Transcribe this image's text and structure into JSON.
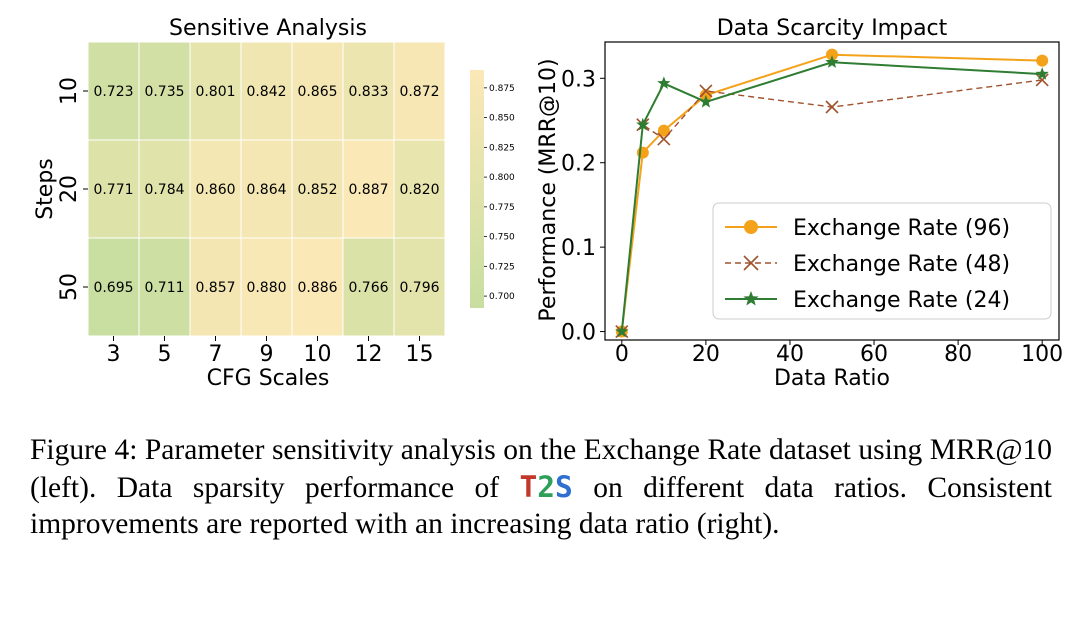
{
  "chart_data": [
    {
      "type": "heatmap",
      "title": "Sensitive Analysis",
      "xlabel": "CFG Scales",
      "ylabel": "Steps",
      "x_categories": [
        "3",
        "5",
        "7",
        "9",
        "10",
        "12",
        "15"
      ],
      "y_categories": [
        "10",
        "20",
        "50"
      ],
      "values": [
        [
          0.723,
          0.735,
          0.801,
          0.842,
          0.865,
          0.833,
          0.872
        ],
        [
          0.771,
          0.784,
          0.86,
          0.864,
          0.852,
          0.887,
          0.82
        ],
        [
          0.695,
          0.711,
          0.857,
          0.88,
          0.886,
          0.766,
          0.796
        ]
      ],
      "cell_labels": [
        [
          "0.723",
          "0.735",
          "0.801",
          "0.842",
          "0.865",
          "0.833",
          "0.872"
        ],
        [
          "0.771",
          "0.784",
          "0.860",
          "0.864",
          "0.852",
          "0.887",
          "0.820"
        ],
        [
          "0.695",
          "0.711",
          "0.857",
          "0.880",
          "0.886",
          "0.766",
          "0.796"
        ]
      ],
      "colorbar": {
        "range": [
          0.69,
          0.89
        ],
        "ticks": [
          0.7,
          0.725,
          0.75,
          0.775,
          0.8,
          0.825,
          0.85,
          0.875
        ],
        "tick_labels": [
          "0.700",
          "0.725",
          "0.750",
          "0.775",
          "0.800",
          "0.825",
          "0.850",
          "0.875"
        ],
        "color_low": "#c8dea0",
        "color_high": "#fbe8b6"
      }
    },
    {
      "type": "line",
      "title": "Data Scarcity Impact",
      "xlabel": "Data Ratio",
      "ylabel": "Performance (MRR@10)",
      "xlim": [
        -4,
        104
      ],
      "ylim": [
        -0.01,
        0.343
      ],
      "x_ticks": [
        0,
        20,
        40,
        60,
        80,
        100
      ],
      "x_tick_labels": [
        "0",
        "20",
        "40",
        "60",
        "80",
        "100"
      ],
      "y_ticks": [
        0.0,
        0.1,
        0.2,
        0.3
      ],
      "y_tick_labels": [
        "0.0",
        "0.1",
        "0.2",
        "0.3"
      ],
      "grid": false,
      "legend_position": "lower-right",
      "series": [
        {
          "name": "Exchange Rate (96)",
          "color": "#f5a21b",
          "marker": "circle",
          "dash": "solid",
          "x": [
            0,
            5,
            10,
            20,
            50,
            100
          ],
          "y": [
            0.0,
            0.212,
            0.238,
            0.28,
            0.328,
            0.321
          ]
        },
        {
          "name": "Exchange Rate (48)",
          "color": "#a0522d",
          "marker": "x",
          "dash": "dashed",
          "x": [
            0,
            5,
            10,
            20,
            50,
            100
          ],
          "y": [
            0.0,
            0.245,
            0.228,
            0.285,
            0.266,
            0.298
          ]
        },
        {
          "name": "Exchange Rate (24)",
          "color": "#2e7d32",
          "marker": "star",
          "dash": "solid",
          "x": [
            0,
            5,
            10,
            20,
            50,
            100
          ],
          "y": [
            0.0,
            0.245,
            0.294,
            0.272,
            0.319,
            0.305
          ]
        }
      ]
    }
  ],
  "caption": {
    "before_brand": "Figure 4:  Parameter sensitivity analysis on the Exchange Rate dataset using MRR@10 (left).  Data sparsity performance of ",
    "brand_t": "T",
    "brand_2": "2",
    "brand_s": "S",
    "after_brand": " on different data ratios. Consistent improvements are reported with an increasing data ratio (right)."
  }
}
